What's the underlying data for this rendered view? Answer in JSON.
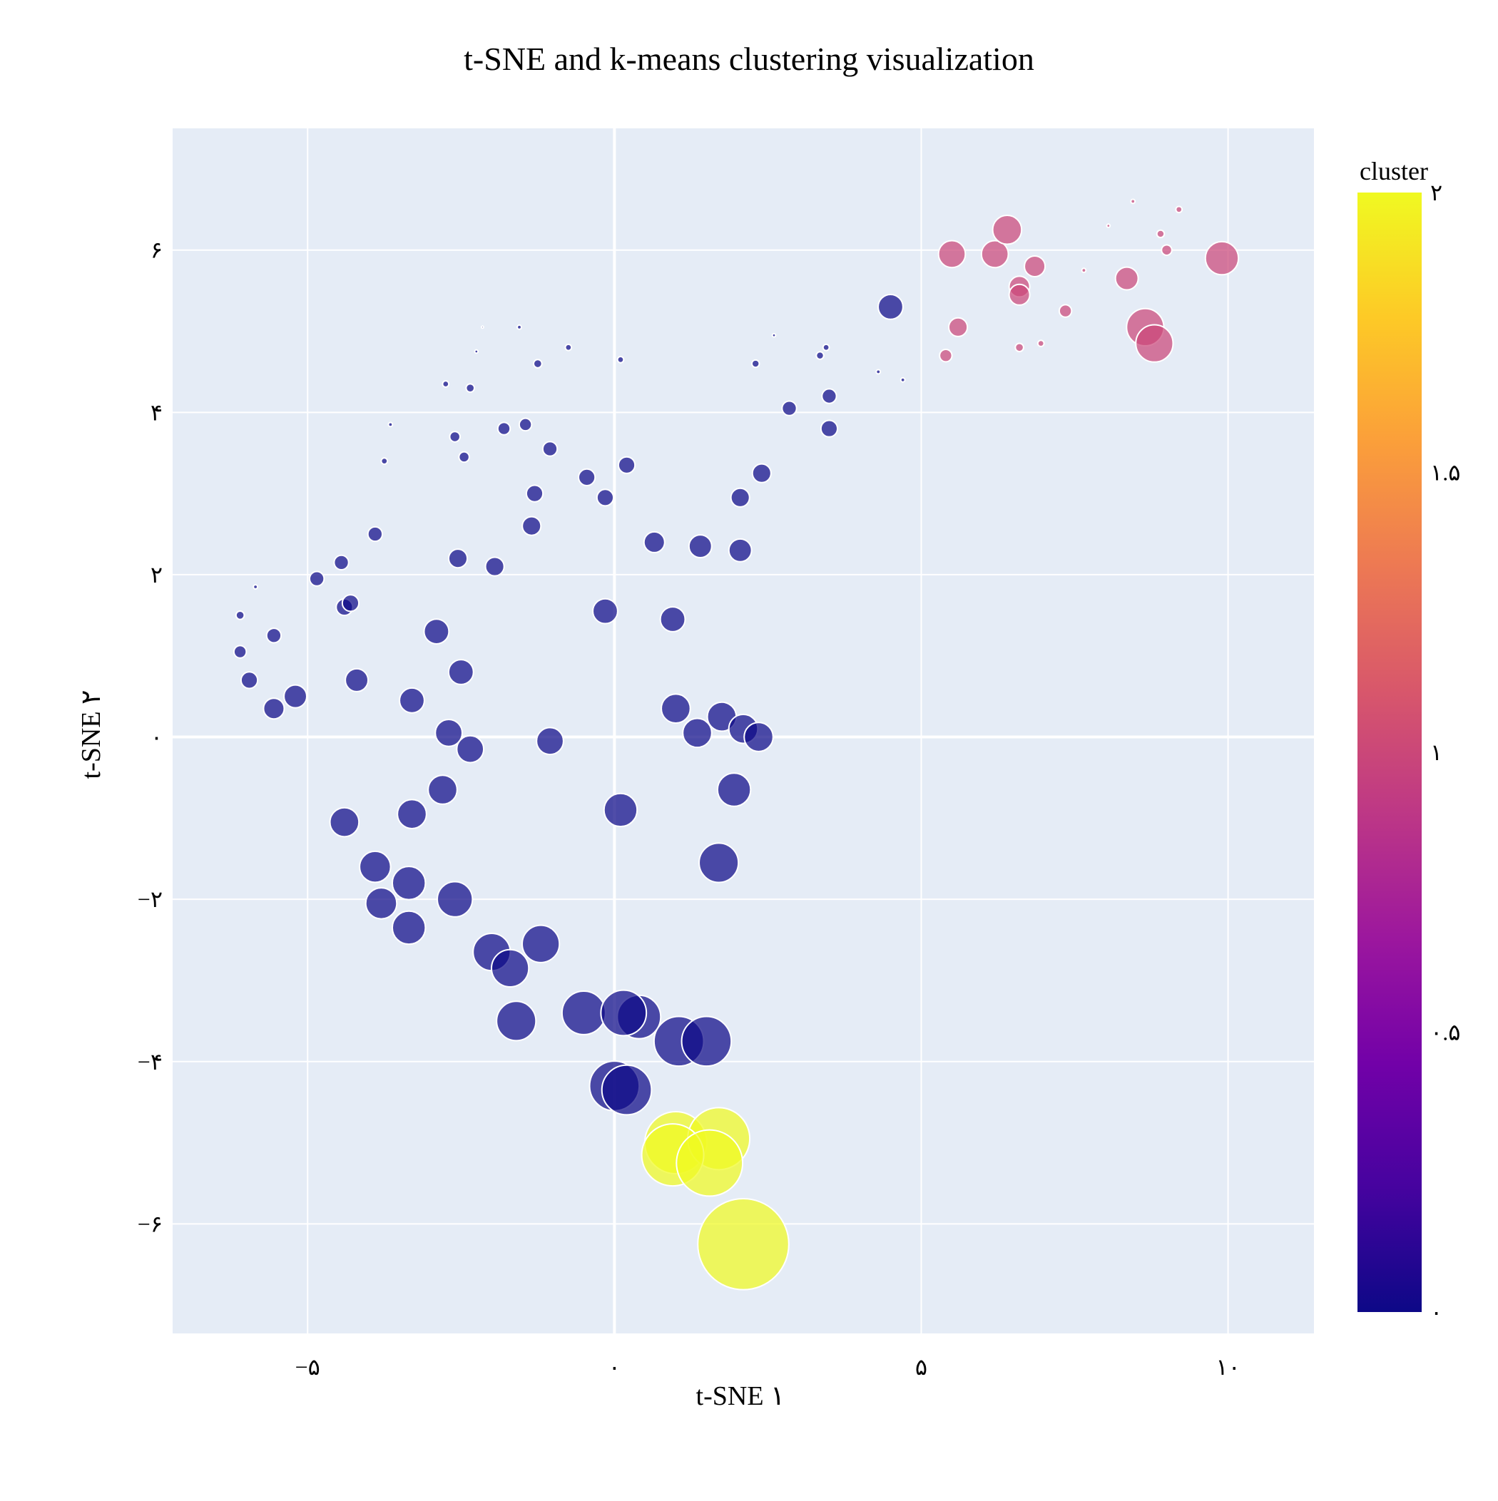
{
  "chart_data": {
    "type": "scatter",
    "title": "t‑SNE and k‑means clustering visualization",
    "xlabel": "t‑SNE ۱",
    "ylabel": "t‑SNE ۲",
    "xlim": [
      -7.2,
      11.4
    ],
    "ylim": [
      -7.35,
      7.5
    ],
    "xticks": [
      {
        "value": -5,
        "label": "−۵"
      },
      {
        "value": 0,
        "label": "۰"
      },
      {
        "value": 5,
        "label": "۵"
      },
      {
        "value": 10,
        "label": "۱۰"
      }
    ],
    "yticks": [
      {
        "value": 6,
        "label": "۶"
      },
      {
        "value": 4,
        "label": "۴"
      },
      {
        "value": 2,
        "label": "۲"
      },
      {
        "value": 0,
        "label": "۰"
      },
      {
        "value": -2,
        "label": "−۲"
      },
      {
        "value": -4,
        "label": "−۴"
      },
      {
        "value": -6,
        "label": "−۶"
      }
    ],
    "grid": true,
    "colorbar": {
      "title": "cluster",
      "range": [
        0,
        2
      ],
      "ticks": [
        {
          "value": 2,
          "label": "۲"
        },
        {
          "value": 1.5,
          "label": "۱.۵"
        },
        {
          "value": 1,
          "label": "۱"
        },
        {
          "value": 0.5,
          "label": "۰.۵"
        },
        {
          "value": 0,
          "label": "۰"
        }
      ],
      "colorscale": [
        "#0d0887",
        "#46039f",
        "#7201a8",
        "#9c179e",
        "#bd3786",
        "#d8576b",
        "#ed7953",
        "#fb9f3a",
        "#fdca26",
        "#f0f921"
      ]
    },
    "colors": {
      "plot_background": "#e5ecf6",
      "grid": "#ffffff",
      "cluster_0": "#0d0887",
      "cluster_1": "#cc4778",
      "cluster_2": "#f0f921"
    },
    "points": [
      {
        "x": -6.1,
        "y": 1.5,
        "size": 2,
        "cluster": 0
      },
      {
        "x": -6.1,
        "y": 1.05,
        "size": 3,
        "cluster": 0
      },
      {
        "x": -5.95,
        "y": 0.7,
        "size": 4,
        "cluster": 0
      },
      {
        "x": -5.85,
        "y": 1.85,
        "size": 1,
        "cluster": 0
      },
      {
        "x": -5.55,
        "y": 1.25,
        "size": 3.5,
        "cluster": 0
      },
      {
        "x": -5.55,
        "y": 0.35,
        "size": 5,
        "cluster": 0
      },
      {
        "x": -5.2,
        "y": 0.5,
        "size": 5.5,
        "cluster": 0
      },
      {
        "x": -4.85,
        "y": 1.95,
        "size": 3.5,
        "cluster": 0
      },
      {
        "x": -4.45,
        "y": 2.15,
        "size": 3.5,
        "cluster": 0
      },
      {
        "x": -4.4,
        "y": 1.6,
        "size": 4,
        "cluster": 0
      },
      {
        "x": -4.3,
        "y": 1.65,
        "size": 4,
        "cluster": 0
      },
      {
        "x": -4.2,
        "y": 0.7,
        "size": 5.5,
        "cluster": 0
      },
      {
        "x": -3.9,
        "y": 2.5,
        "size": 3.5,
        "cluster": 0
      },
      {
        "x": -3.75,
        "y": 3.4,
        "size": 1.5,
        "cluster": 0
      },
      {
        "x": -3.65,
        "y": 3.85,
        "size": 1,
        "cluster": 0
      },
      {
        "x": -3.3,
        "y": 0.45,
        "size": 6,
        "cluster": 0
      },
      {
        "x": -2.9,
        "y": 1.3,
        "size": 6,
        "cluster": 0
      },
      {
        "x": -2.75,
        "y": 4.35,
        "size": 1.5,
        "cluster": 0
      },
      {
        "x": -2.6,
        "y": 3.7,
        "size": 2.5,
        "cluster": 0
      },
      {
        "x": -2.55,
        "y": 2.2,
        "size": 4.5,
        "cluster": 0
      },
      {
        "x": -2.5,
        "y": 0.8,
        "size": 6,
        "cluster": 0
      },
      {
        "x": -2.45,
        "y": 3.45,
        "size": 2.5,
        "cluster": 0
      },
      {
        "x": -2.35,
        "y": 4.3,
        "size": 2,
        "cluster": 0
      },
      {
        "x": -2.25,
        "y": 4.75,
        "size": 0.8,
        "cluster": 0
      },
      {
        "x": -2.15,
        "y": 5.05,
        "size": 0.5,
        "cluster": 0
      },
      {
        "x": -1.95,
        "y": 2.1,
        "size": 4.5,
        "cluster": 0
      },
      {
        "x": -1.8,
        "y": 3.8,
        "size": 3,
        "cluster": 0
      },
      {
        "x": -1.55,
        "y": 5.05,
        "size": 1,
        "cluster": 0
      },
      {
        "x": -1.45,
        "y": 3.85,
        "size": 3,
        "cluster": 0
      },
      {
        "x": -1.35,
        "y": 2.6,
        "size": 4.5,
        "cluster": 0
      },
      {
        "x": -1.3,
        "y": 3.0,
        "size": 4,
        "cluster": 0
      },
      {
        "x": -1.25,
        "y": 4.6,
        "size": 2,
        "cluster": 0
      },
      {
        "x": -1.05,
        "y": 3.55,
        "size": 3.5,
        "cluster": 0
      },
      {
        "x": -0.75,
        "y": 4.8,
        "size": 1.5,
        "cluster": 0
      },
      {
        "x": -0.45,
        "y": 3.2,
        "size": 4,
        "cluster": 0
      },
      {
        "x": -0.15,
        "y": 2.95,
        "size": 4,
        "cluster": 0
      },
      {
        "x": 0.1,
        "y": 4.65,
        "size": 1.5,
        "cluster": 0
      },
      {
        "x": 0.2,
        "y": 3.35,
        "size": 4,
        "cluster": 0
      },
      {
        "x": 0.65,
        "y": 2.4,
        "size": 5,
        "cluster": 0
      },
      {
        "x": 1.4,
        "y": 2.35,
        "size": 5.5,
        "cluster": 0
      },
      {
        "x": 2.05,
        "y": 2.95,
        "size": 4.5,
        "cluster": 0
      },
      {
        "x": 2.05,
        "y": 2.3,
        "size": 5.5,
        "cluster": 0
      },
      {
        "x": 2.3,
        "y": 4.6,
        "size": 1.8,
        "cluster": 0
      },
      {
        "x": 2.4,
        "y": 3.25,
        "size": 4.5,
        "cluster": 0
      },
      {
        "x": 2.6,
        "y": 4.95,
        "size": 0.8,
        "cluster": 0
      },
      {
        "x": 2.85,
        "y": 4.05,
        "size": 3.5,
        "cluster": 0
      },
      {
        "x": 3.35,
        "y": 4.7,
        "size": 1.8,
        "cluster": 0
      },
      {
        "x": 3.45,
        "y": 4.8,
        "size": 1.5,
        "cluster": 0
      },
      {
        "x": 3.5,
        "y": 4.2,
        "size": 3.5,
        "cluster": 0
      },
      {
        "x": 3.5,
        "y": 3.8,
        "size": 4,
        "cluster": 0
      },
      {
        "x": 4.3,
        "y": 4.5,
        "size": 1,
        "cluster": 0
      },
      {
        "x": 4.5,
        "y": 5.3,
        "size": 6,
        "cluster": 0
      },
      {
        "x": 4.7,
        "y": 4.4,
        "size": 1,
        "cluster": 0
      },
      {
        "x": -0.15,
        "y": 1.55,
        "size": 6,
        "cluster": 0
      },
      {
        "x": 0.95,
        "y": 1.45,
        "size": 6,
        "cluster": 0
      },
      {
        "x": 1.0,
        "y": 0.35,
        "size": 7,
        "cluster": 0
      },
      {
        "x": 1.35,
        "y": 0.05,
        "size": 7,
        "cluster": 0
      },
      {
        "x": 1.75,
        "y": 0.25,
        "size": 7,
        "cluster": 0
      },
      {
        "x": 2.1,
        "y": 0.1,
        "size": 7,
        "cluster": 0
      },
      {
        "x": 2.35,
        "y": 0.0,
        "size": 7,
        "cluster": 0
      },
      {
        "x": -2.7,
        "y": 0.05,
        "size": 6.5,
        "cluster": 0
      },
      {
        "x": -2.35,
        "y": -0.15,
        "size": 6.5,
        "cluster": 0
      },
      {
        "x": -1.05,
        "y": -0.05,
        "size": 6.5,
        "cluster": 0
      },
      {
        "x": -2.8,
        "y": -0.65,
        "size": 7,
        "cluster": 0
      },
      {
        "x": -3.3,
        "y": -0.95,
        "size": 7,
        "cluster": 0
      },
      {
        "x": -4.4,
        "y": -1.05,
        "size": 7,
        "cluster": 0
      },
      {
        "x": 0.1,
        "y": -0.9,
        "size": 8,
        "cluster": 0
      },
      {
        "x": 1.95,
        "y": -0.65,
        "size": 8,
        "cluster": 0
      },
      {
        "x": 1.7,
        "y": -1.55,
        "size": 9.5,
        "cluster": 0
      },
      {
        "x": -3.9,
        "y": -1.6,
        "size": 7.5,
        "cluster": 0
      },
      {
        "x": -3.35,
        "y": -1.8,
        "size": 8,
        "cluster": 0
      },
      {
        "x": -3.8,
        "y": -2.05,
        "size": 7.5,
        "cluster": 0
      },
      {
        "x": -2.6,
        "y": -2.0,
        "size": 8.5,
        "cluster": 0
      },
      {
        "x": -3.35,
        "y": -2.35,
        "size": 8,
        "cluster": 0
      },
      {
        "x": -2.0,
        "y": -2.65,
        "size": 9,
        "cluster": 0
      },
      {
        "x": -1.7,
        "y": -2.85,
        "size": 9,
        "cluster": 0
      },
      {
        "x": -1.2,
        "y": -2.55,
        "size": 9,
        "cluster": 0
      },
      {
        "x": -1.6,
        "y": -3.5,
        "size": 9.5,
        "cluster": 0
      },
      {
        "x": -0.5,
        "y": -3.4,
        "size": 10.5,
        "cluster": 0
      },
      {
        "x": 0.15,
        "y": -3.4,
        "size": 11,
        "cluster": 0
      },
      {
        "x": 0.4,
        "y": -3.45,
        "size": 10.5,
        "cluster": 0
      },
      {
        "x": 1.05,
        "y": -3.75,
        "size": 12,
        "cluster": 0
      },
      {
        "x": 1.5,
        "y": -3.75,
        "size": 12,
        "cluster": 0
      },
      {
        "x": 0.0,
        "y": -4.3,
        "size": 12,
        "cluster": 0
      },
      {
        "x": 0.2,
        "y": -4.35,
        "size": 12,
        "cluster": 0
      },
      {
        "x": 1.0,
        "y": -5.0,
        "size": 15,
        "cluster": 2
      },
      {
        "x": 1.7,
        "y": -4.95,
        "size": 15,
        "cluster": 2
      },
      {
        "x": 0.95,
        "y": -5.15,
        "size": 15,
        "cluster": 2
      },
      {
        "x": 1.55,
        "y": -5.25,
        "size": 16,
        "cluster": 2
      },
      {
        "x": 2.1,
        "y": -6.25,
        "size": 22,
        "cluster": 2
      },
      {
        "x": 5.5,
        "y": 5.95,
        "size": 6.5,
        "cluster": 1
      },
      {
        "x": 5.4,
        "y": 4.7,
        "size": 3,
        "cluster": 1
      },
      {
        "x": 5.6,
        "y": 5.05,
        "size": 4.5,
        "cluster": 1
      },
      {
        "x": 6.2,
        "y": 5.95,
        "size": 6.5,
        "cluster": 1
      },
      {
        "x": 6.4,
        "y": 6.25,
        "size": 7,
        "cluster": 1
      },
      {
        "x": 6.6,
        "y": 5.55,
        "size": 5,
        "cluster": 1
      },
      {
        "x": 6.6,
        "y": 5.45,
        "size": 5,
        "cluster": 1
      },
      {
        "x": 6.6,
        "y": 4.8,
        "size": 2,
        "cluster": 1
      },
      {
        "x": 6.85,
        "y": 5.8,
        "size": 5,
        "cluster": 1
      },
      {
        "x": 6.95,
        "y": 4.85,
        "size": 1.5,
        "cluster": 1
      },
      {
        "x": 7.35,
        "y": 5.25,
        "size": 3,
        "cluster": 1
      },
      {
        "x": 7.65,
        "y": 5.75,
        "size": 1,
        "cluster": 1
      },
      {
        "x": 8.05,
        "y": 6.3,
        "size": 0.8,
        "cluster": 1
      },
      {
        "x": 8.35,
        "y": 5.65,
        "size": 5.5,
        "cluster": 1
      },
      {
        "x": 8.45,
        "y": 6.6,
        "size": 1,
        "cluster": 1
      },
      {
        "x": 8.65,
        "y": 5.05,
        "size": 9,
        "cluster": 1
      },
      {
        "x": 8.8,
        "y": 4.85,
        "size": 9,
        "cluster": 1
      },
      {
        "x": 8.9,
        "y": 6.2,
        "size": 1.8,
        "cluster": 1
      },
      {
        "x": 9.0,
        "y": 6.0,
        "size": 2.5,
        "cluster": 1
      },
      {
        "x": 9.2,
        "y": 6.5,
        "size": 1.5,
        "cluster": 1
      },
      {
        "x": 9.9,
        "y": 5.9,
        "size": 8,
        "cluster": 1
      }
    ]
  }
}
